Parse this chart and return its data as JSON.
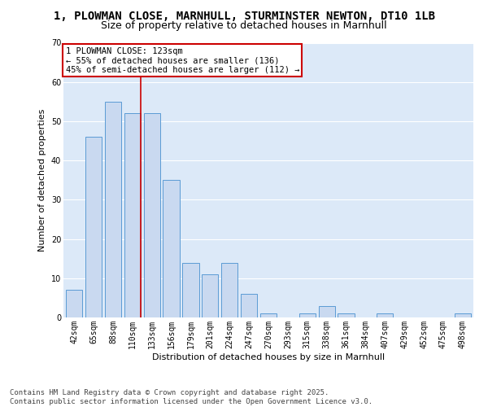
{
  "title1": "1, PLOWMAN CLOSE, MARNHULL, STURMINSTER NEWTON, DT10 1LB",
  "title2": "Size of property relative to detached houses in Marnhull",
  "xlabel": "Distribution of detached houses by size in Marnhull",
  "ylabel": "Number of detached properties",
  "bar_labels": [
    "42sqm",
    "65sqm",
    "88sqm",
    "110sqm",
    "133sqm",
    "156sqm",
    "179sqm",
    "201sqm",
    "224sqm",
    "247sqm",
    "270sqm",
    "293sqm",
    "315sqm",
    "338sqm",
    "361sqm",
    "384sqm",
    "407sqm",
    "429sqm",
    "452sqm",
    "475sqm",
    "498sqm"
  ],
  "bar_values": [
    7,
    46,
    55,
    52,
    52,
    35,
    14,
    11,
    14,
    6,
    1,
    0,
    1,
    3,
    1,
    0,
    1,
    0,
    0,
    0,
    1
  ],
  "bar_color": "#c9d9f0",
  "bar_edge_color": "#5b9bd5",
  "fig_bg_color": "#ffffff",
  "plot_bg_color": "#dce9f8",
  "grid_color": "#ffffff",
  "red_line_x": 3.42,
  "annotation_text": "1 PLOWMAN CLOSE: 123sqm\n← 55% of detached houses are smaller (136)\n45% of semi-detached houses are larger (112) →",
  "annotation_box_color": "#ffffff",
  "annotation_box_edge": "#cc0000",
  "ylim": [
    0,
    70
  ],
  "yticks": [
    0,
    10,
    20,
    30,
    40,
    50,
    60,
    70
  ],
  "footer": "Contains HM Land Registry data © Crown copyright and database right 2025.\nContains public sector information licensed under the Open Government Licence v3.0.",
  "title1_fontsize": 10,
  "title2_fontsize": 9,
  "axis_label_fontsize": 8,
  "tick_fontsize": 7,
  "footer_fontsize": 6.5,
  "ann_fontsize": 7.5
}
